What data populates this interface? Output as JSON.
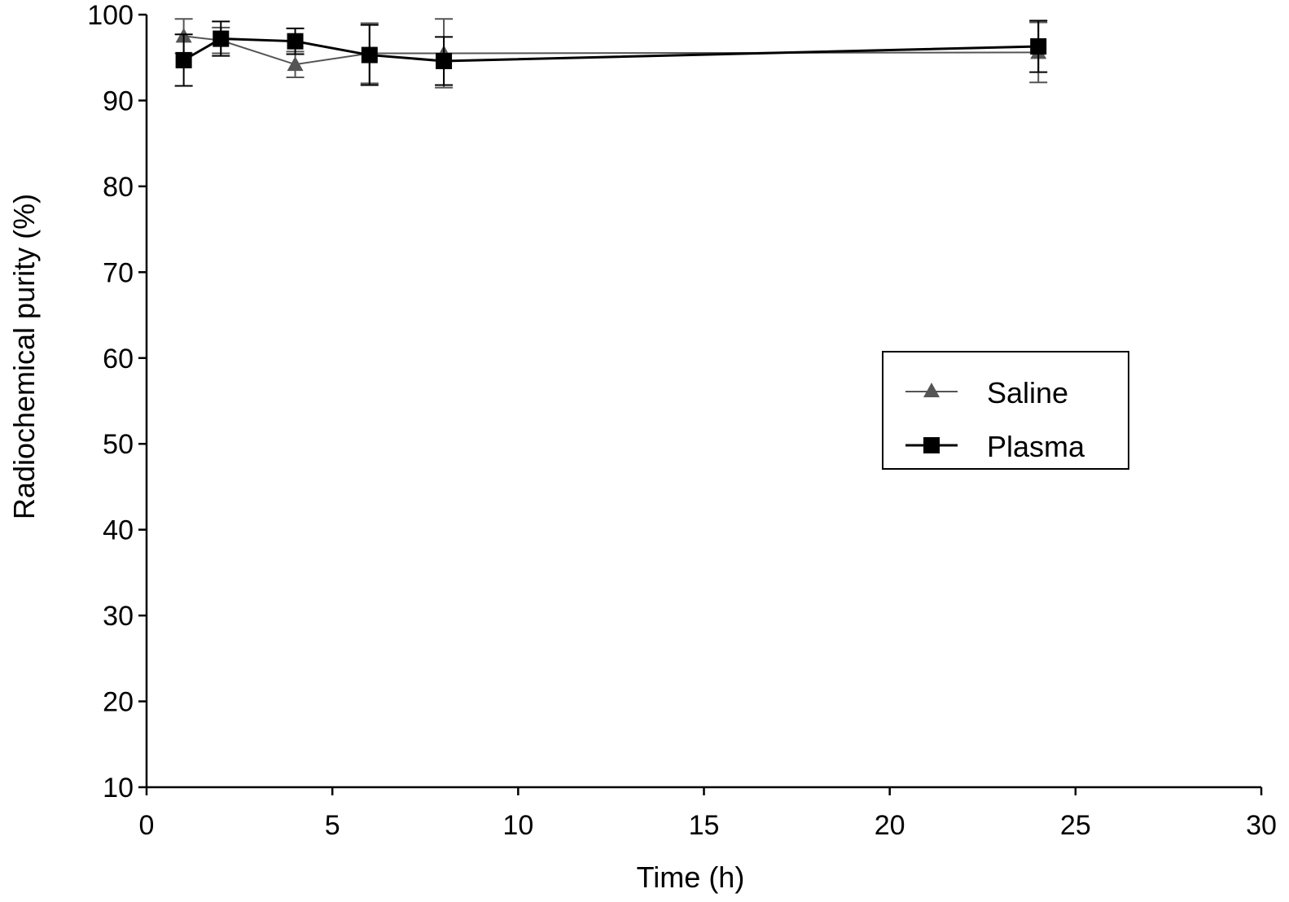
{
  "chart_data": {
    "type": "line",
    "title": "",
    "xlabel": "Time (h)",
    "ylabel": "Radiochemical purity (%)",
    "xlim": [
      0,
      30
    ],
    "ylim": [
      10,
      100
    ],
    "xticks": [
      0,
      5,
      10,
      15,
      20,
      25,
      30
    ],
    "yticks": [
      10,
      20,
      30,
      40,
      50,
      60,
      70,
      80,
      90,
      100
    ],
    "grid": false,
    "legend_position": "center-right",
    "series": [
      {
        "name": "Saline",
        "marker": "triangle",
        "color": "#555555",
        "x": [
          1,
          2,
          4,
          6,
          8,
          24
        ],
        "y": [
          97.5,
          97.0,
          94.2,
          95.5,
          95.5,
          95.6
        ],
        "error": [
          2.0,
          1.5,
          1.5,
          3.5,
          4.0,
          3.5
        ]
      },
      {
        "name": "Plasma",
        "marker": "square",
        "color": "#000000",
        "x": [
          1,
          2,
          4,
          6,
          8,
          24
        ],
        "y": [
          94.7,
          97.2,
          96.9,
          95.3,
          94.6,
          96.3
        ],
        "error": [
          3.0,
          2.0,
          1.5,
          3.5,
          2.8,
          3.0
        ]
      }
    ]
  }
}
